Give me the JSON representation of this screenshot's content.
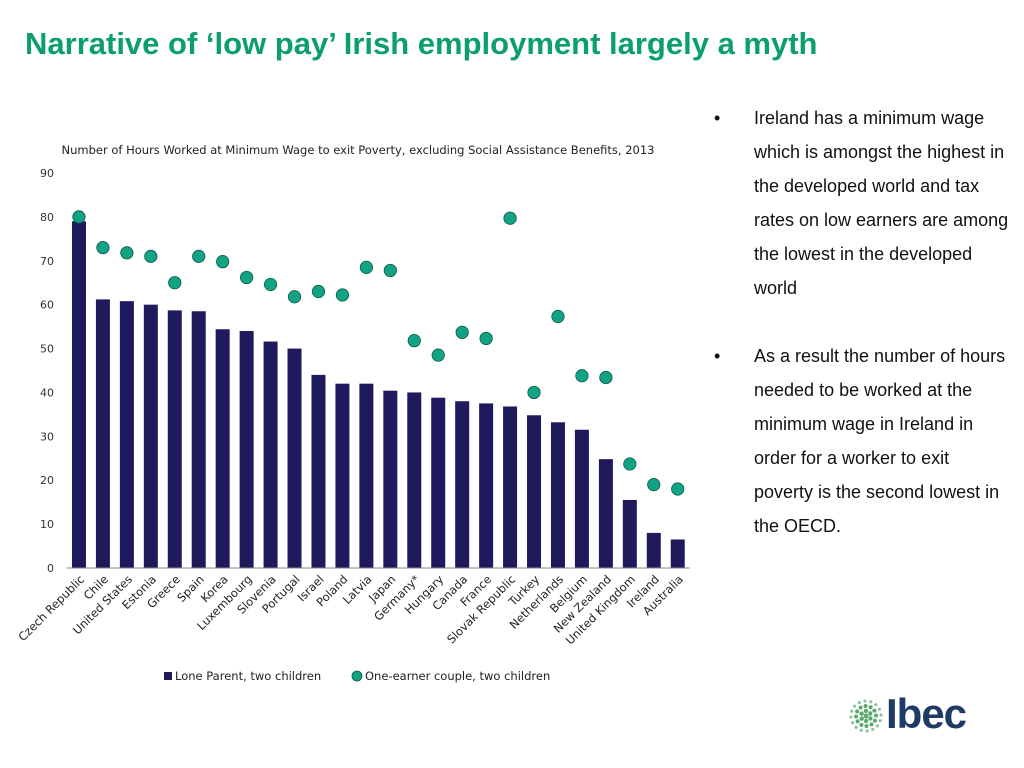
{
  "slide": {
    "title": "Narrative of ‘low pay’ Irish employment largely a myth",
    "bullet_glyph": "•",
    "bullets": [
      "Ireland has a minimum wage which is amongst the highest in the developed world and tax rates on low earners are among the lowest in the developed world",
      "As a result the number of hours needed to be worked at the minimum   wage in Ireland in order for a worker to exit poverty is the second lowest in the OECD."
    ],
    "logo": {
      "text": "Ibec",
      "icon": "green-dotted-globe-icon"
    }
  },
  "chart_data": {
    "type": "bar",
    "title": "Number of Hours Worked at Minimum Wage to exit Poverty, excluding Social Assistance Benefits, 2013",
    "categories": [
      "Czech Republic",
      "Chile",
      "United States",
      "Estonia",
      "Greece",
      "Spain",
      "Korea",
      "Luxembourg",
      "Slovenia",
      "Portugal",
      "Israel",
      "Poland",
      "Latvia",
      "Japan",
      "Germany*",
      "Hungary",
      "Canada",
      "France",
      "Slovak Republic",
      "Turkey",
      "Netherlands",
      "Belgium",
      "New Zealand",
      "United Kingdom",
      "Ireland",
      "Australia"
    ],
    "series": [
      {
        "name": "Lone Parent, two children",
        "type": "bar",
        "color": "#1f1a5c",
        "values": [
          79,
          61.2,
          60.8,
          60,
          58.7,
          58.5,
          54.4,
          54,
          51.6,
          50,
          44,
          42,
          42,
          40.4,
          40,
          38.8,
          38,
          37.5,
          36.8,
          34.8,
          33.2,
          31.5,
          24.8,
          15.5,
          8,
          6.5
        ]
      },
      {
        "name": "One-earner couple, two children",
        "type": "scatter",
        "color": "#11a383",
        "values": [
          80,
          73,
          71.8,
          71,
          65,
          71,
          69.8,
          66.2,
          64.6,
          61.8,
          63,
          62.2,
          68.5,
          67.8,
          51.8,
          48.5,
          53.7,
          52.3,
          79.7,
          40,
          57.3,
          43.8,
          43.4,
          23.7,
          19,
          18
        ]
      }
    ],
    "ylim": [
      0,
      90
    ],
    "yticks": [
      0,
      10,
      20,
      30,
      40,
      50,
      60,
      70,
      80,
      90
    ],
    "grid": false,
    "legend": "bottom"
  }
}
